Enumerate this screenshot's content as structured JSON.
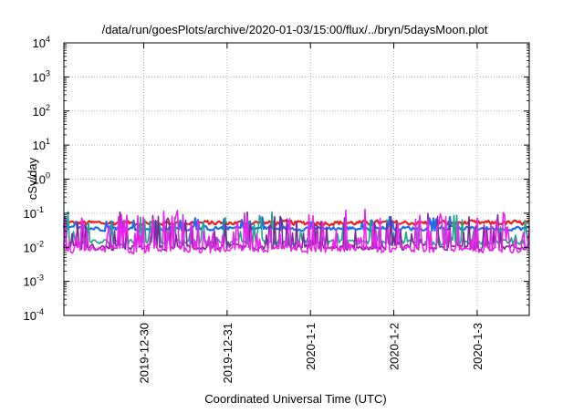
{
  "chart_data": {
    "type": "line",
    "title": "/data/run/goesPlots/archive/2020-01-03/15:00/flux/../bryn/5daysMoon.plot",
    "xlabel": "Coordinated Universal Time (UTC)",
    "ylabel": "cSv/day",
    "y_scale": "log",
    "ylim": [
      0.0001,
      10000
    ],
    "xlim": [
      "2019-12-29 01:00",
      "2020-01-03 15:00"
    ],
    "grid": true,
    "legend": "none",
    "y_ticks": [
      {
        "base": "10",
        "exp": "-4"
      },
      {
        "base": "10",
        "exp": "-3"
      },
      {
        "base": "10",
        "exp": "-2"
      },
      {
        "base": "10",
        "exp": "-1"
      },
      {
        "base": "10",
        "exp": "0"
      },
      {
        "base": "10",
        "exp": "1"
      },
      {
        "base": "10",
        "exp": "2"
      },
      {
        "base": "10",
        "exp": "3"
      },
      {
        "base": "10",
        "exp": "4"
      }
    ],
    "x_ticks": [
      {
        "label": "2019-12-30",
        "date": "2019-12-30"
      },
      {
        "label": "2019-12-31",
        "date": "2019-12-31"
      },
      {
        "label": "2020-1-1",
        "date": "2020-01-01"
      },
      {
        "label": "2020-1-2",
        "date": "2020-01-02"
      },
      {
        "label": "2020-1-3",
        "date": "2020-01-03"
      }
    ],
    "series": [
      {
        "color": "#e8211e",
        "base": 0.052,
        "jitter": 0.25,
        "spike": 0.0,
        "spike_prob": 0.0
      },
      {
        "color": "#1e6fe8",
        "base": 0.036,
        "jitter": 0.22,
        "spike": 0.5,
        "spike_prob": 0.08
      },
      {
        "color": "#18a888",
        "base": 0.014,
        "jitter": 0.3,
        "spike": 1.2,
        "spike_prob": 0.25
      },
      {
        "color": "#7a2a9a",
        "base": 0.01,
        "jitter": 0.3,
        "spike": 1.4,
        "spike_prob": 0.28
      },
      {
        "color": "#ee22ee",
        "base": 0.0085,
        "jitter": 0.35,
        "spike": 1.6,
        "spike_prob": 0.33
      }
    ]
  }
}
